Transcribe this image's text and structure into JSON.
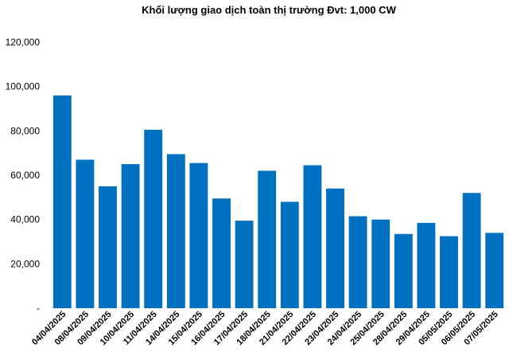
{
  "chart_data": {
    "type": "bar",
    "title": "Khối lượng giao dịch toàn thị trường Đvt: 1,000 CW",
    "xlabel": "",
    "ylabel": "",
    "ylim": [
      0,
      120000
    ],
    "yticks": [
      0,
      20000,
      40000,
      60000,
      80000,
      100000,
      120000
    ],
    "ytick_labels": [
      "-",
      "20,000",
      "40,000",
      "60,000",
      "80,000",
      "100,000",
      "120,000"
    ],
    "grid": false,
    "legend": "none",
    "bar_color": "#0070C0",
    "categories": [
      "04/04/2025",
      "08/04/2025",
      "09/04/2025",
      "10/04/2025",
      "11/04/2025",
      "14/04/2025",
      "15/04/2025",
      "16/04/2025",
      "17/04/2025",
      "18/04/2025",
      "21/04/2025",
      "22/04/2025",
      "23/04/2025",
      "24/04/2025",
      "25/04/2025",
      "28/04/2025",
      "29/04/2025",
      "05/05/2025",
      "06/05/2025",
      "07/05/2025"
    ],
    "values": [
      96000,
      67000,
      55000,
      65000,
      80500,
      69500,
      65500,
      49500,
      39500,
      62000,
      48000,
      64500,
      54000,
      41500,
      40000,
      33500,
      38500,
      32500,
      52000,
      34000
    ]
  }
}
